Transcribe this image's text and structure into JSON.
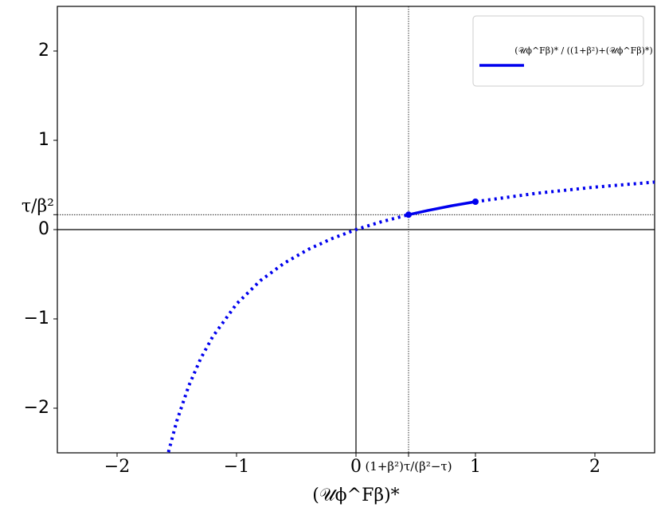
{
  "chart_data": {
    "type": "line",
    "xlim": [
      -2.5,
      2.5
    ],
    "ylim": [
      -2.5,
      2.5
    ],
    "xticks": [
      {
        "value": -2,
        "label": "−2"
      },
      {
        "value": -1,
        "label": "−1"
      },
      0,
      {
        "value": 0.44,
        "label": "(1+β²)τ/(β²−τ)"
      },
      1,
      2
    ],
    "yticks": [
      {
        "value": -2,
        "label": "−2"
      },
      {
        "value": -1,
        "label": "−1"
      },
      0,
      {
        "value": 0.167,
        "label": "τ/β²"
      },
      1,
      2
    ],
    "xlabel": "(𝒰ϕ^Fβ)*",
    "legend": "upper right",
    "series": [
      {
        "name": "(𝒰ϕ^Fβ)* / ((1+β²)+(𝒰ϕ^Fβ)*)",
        "color": "#0000ee",
        "style": "solid",
        "x": [
          0.44,
          0.6,
          0.8,
          1
        ],
        "values": [
          0.167,
          0.214,
          0.267,
          0.3125
        ]
      },
      {
        "color": "#0000ee",
        "style": "dotted",
        "x": [
          -1.57,
          -1.5,
          -1.4,
          -1.3,
          -1.2,
          -1.0,
          -0.8,
          -0.6,
          -0.4,
          -0.2,
          0,
          0.2,
          0.44
        ],
        "values": [
          -2.492,
          -2.143,
          -1.75,
          -1.444,
          -1.2,
          -0.833,
          -0.571,
          -0.375,
          -0.222,
          -0.1,
          0,
          0.083,
          0.167
        ]
      },
      {
        "color": "#0000ee",
        "style": "dotted",
        "x": [
          1,
          1.5,
          2,
          2.5
        ],
        "values": [
          0.3125,
          0.405,
          0.476,
          0.532
        ]
      }
    ]
  }
}
